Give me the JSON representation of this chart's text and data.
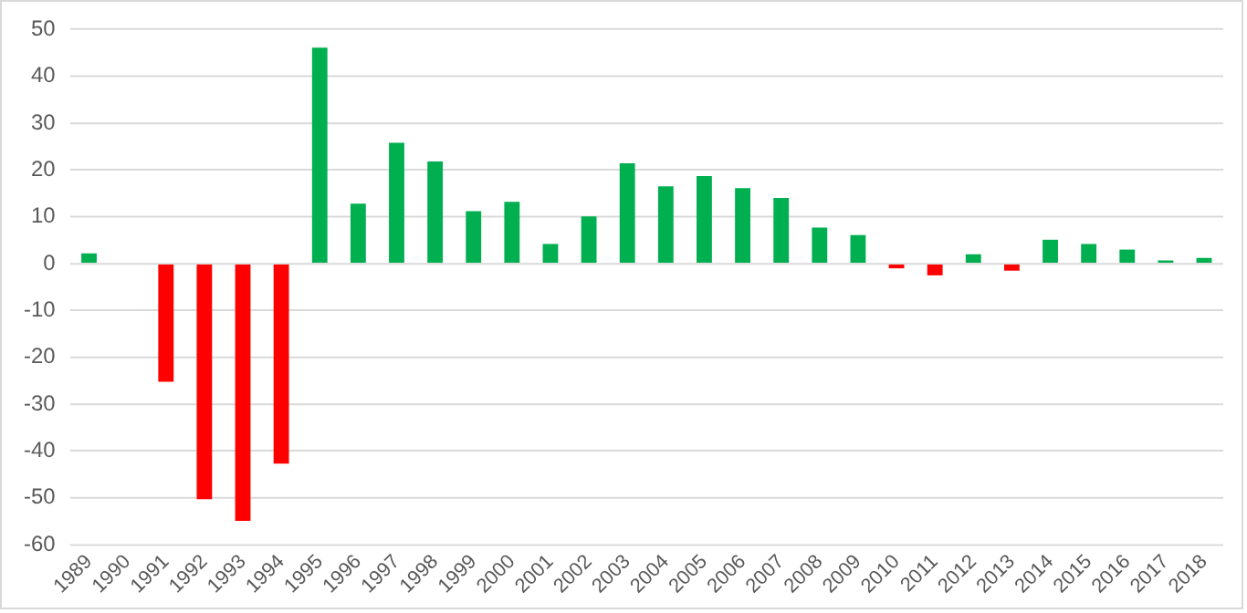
{
  "chart_data": {
    "type": "bar",
    "categories": [
      "1989",
      "1990",
      "1991",
      "1992",
      "1993",
      "1994",
      "1995",
      "1996",
      "1997",
      "1998",
      "1999",
      "2000",
      "2001",
      "2002",
      "2003",
      "2004",
      "2005",
      "2006",
      "2007",
      "2008",
      "2009",
      "2010",
      "2011",
      "2012",
      "2013",
      "2014",
      "2015",
      "2016",
      "2017",
      "2018"
    ],
    "values": [
      2.2,
      0,
      -25.2,
      -50.3,
      -54.9,
      -42.7,
      46.1,
      12.8,
      25.8,
      21.8,
      11.2,
      13.2,
      4.2,
      10.1,
      21.4,
      16.5,
      18.7,
      16.1,
      14.0,
      7.7,
      6.1,
      -1.0,
      -2.5,
      2.0,
      -1.5,
      5.1,
      4.2,
      3.0,
      0.7,
      1.2
    ],
    "colors": [
      "#00b050",
      "#00b050",
      "#ff0000",
      "#ff0000",
      "#ff0000",
      "#ff0000",
      "#00b050",
      "#00b050",
      "#00b050",
      "#00b050",
      "#00b050",
      "#00b050",
      "#00b050",
      "#00b050",
      "#00b050",
      "#00b050",
      "#00b050",
      "#00b050",
      "#00b050",
      "#00b050",
      "#00b050",
      "#ff0000",
      "#ff0000",
      "#00b050",
      "#ff0000",
      "#00b050",
      "#00b050",
      "#00b050",
      "#00b050",
      "#00b050"
    ],
    "ylim": [
      -60,
      50
    ],
    "yticks": [
      -60,
      -50,
      -40,
      -30,
      -20,
      -10,
      0,
      10,
      20,
      30,
      40,
      50
    ],
    "grid": "y",
    "legend": false
  }
}
